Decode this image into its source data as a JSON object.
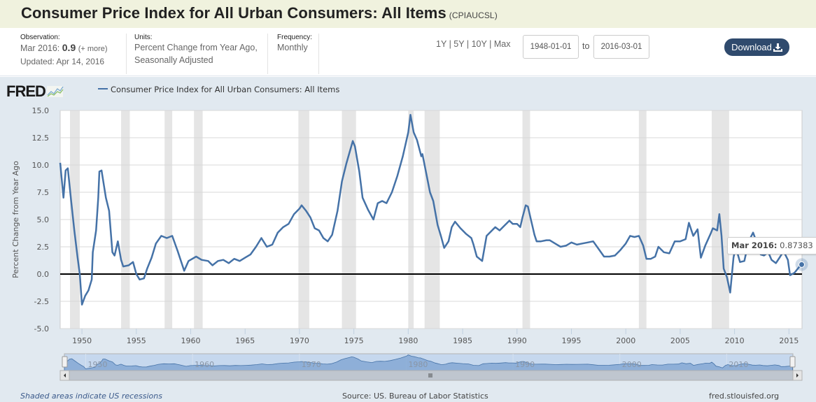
{
  "header": {
    "title": "Consumer Price Index for All Urban Consumers: All Items",
    "series_code": "(CPIAUCSL)"
  },
  "meta": {
    "observation_label": "Observation:",
    "observation_date": "Mar 2016:",
    "observation_value": "0.9",
    "observation_more": "(+ more)",
    "updated": "Updated: Apr 14, 2016",
    "units_label": "Units:",
    "units_line1": "Percent Change from Year Ago,",
    "units_line2": "Seasonally Adjusted",
    "frequency_label": "Frequency:",
    "frequency_value": "Monthly"
  },
  "controls": {
    "ranges": [
      "1Y",
      "5Y",
      "10Y",
      "Max"
    ],
    "range_sep": "|",
    "start_date": "1948-01-01",
    "to_label": "to",
    "end_date": "2016-03-01",
    "download_label": "Download"
  },
  "logo_text": "FRED",
  "tooltip": {
    "date": "Mar 2016",
    "value": "0.87383"
  },
  "navigator_labels": [
    "1950",
    "1960",
    "1970",
    "1980",
    "1990",
    "2000",
    "2010"
  ],
  "footer": {
    "recessions_note": "Shaded areas indicate US recessions",
    "source": "Source: US. Bureau of Labor Statistics",
    "site": "fred.stlouisfed.org"
  },
  "colors": {
    "series": "#4572a7",
    "recession": "#e5e5e5",
    "zero_line": "#000000",
    "download_bg": "#2f4a6d"
  },
  "chart_data": {
    "type": "line",
    "title": "Consumer Price Index for All Urban Consumers: All Items",
    "xlabel": "",
    "ylabel": "Percent Change from Year Ago",
    "xlim": [
      1948,
      2016.2
    ],
    "ylim": [
      -5,
      15
    ],
    "yticks": [
      -5.0,
      -2.5,
      0.0,
      2.5,
      5.0,
      7.5,
      10.0,
      12.5,
      15.0
    ],
    "ytick_labels": [
      "-5.0",
      "-2.5",
      "0.0",
      "2.5",
      "5.0",
      "7.5",
      "10.0",
      "12.5",
      "15.0"
    ],
    "xticks": [
      1950,
      1955,
      1960,
      1965,
      1970,
      1975,
      1980,
      1985,
      1990,
      1995,
      2000,
      2005,
      2010,
      2015
    ],
    "xtick_labels": [
      "1950",
      "1955",
      "1960",
      "1965",
      "1970",
      "1975",
      "1980",
      "1985",
      "1990",
      "1995",
      "2000",
      "2005",
      "2010",
      "2015"
    ],
    "grid": true,
    "legend": "top-left",
    "recessions": [
      [
        1948.9,
        1949.8
      ],
      [
        1953.6,
        1954.4
      ],
      [
        1957.6,
        1958.3
      ],
      [
        1960.3,
        1961.1
      ],
      [
        1969.9,
        1970.9
      ],
      [
        1973.9,
        1975.2
      ],
      [
        1980.0,
        1980.5
      ],
      [
        1981.5,
        1982.9
      ],
      [
        1990.5,
        1991.2
      ],
      [
        2001.2,
        2001.9
      ],
      [
        2007.9,
        2009.5
      ]
    ],
    "series": [
      {
        "name": "Consumer Price Index for All Urban Consumers: All Items",
        "x": [
          1948.0,
          1948.3,
          1948.5,
          1948.7,
          1949.0,
          1949.3,
          1949.6,
          1949.8,
          1950.0,
          1950.3,
          1950.6,
          1950.9,
          1951.0,
          1951.3,
          1951.5,
          1951.6,
          1951.8,
          1952.2,
          1952.5,
          1952.8,
          1953.0,
          1953.3,
          1953.6,
          1953.8,
          1954.3,
          1954.7,
          1955.0,
          1955.3,
          1955.7,
          1956.0,
          1956.4,
          1956.8,
          1957.3,
          1957.8,
          1958.3,
          1958.8,
          1959.4,
          1959.8,
          1960.5,
          1961.0,
          1961.6,
          1962.0,
          1962.5,
          1963.0,
          1963.5,
          1964.0,
          1964.5,
          1965.0,
          1965.5,
          1966.0,
          1966.5,
          1967.0,
          1967.5,
          1968.0,
          1968.5,
          1969.0,
          1969.5,
          1970.0,
          1970.2,
          1970.6,
          1971.0,
          1971.4,
          1971.8,
          1972.2,
          1972.6,
          1973.0,
          1973.5,
          1973.9,
          1974.3,
          1974.7,
          1974.9,
          1975.1,
          1975.5,
          1975.8,
          1976.3,
          1976.8,
          1977.2,
          1977.6,
          1978.0,
          1978.5,
          1979.0,
          1979.5,
          1980.0,
          1980.2,
          1980.5,
          1980.8,
          1981.2,
          1981.3,
          1981.7,
          1982.0,
          1982.3,
          1982.7,
          1983.0,
          1983.3,
          1983.7,
          1984.0,
          1984.3,
          1984.8,
          1985.3,
          1985.8,
          1986.0,
          1986.3,
          1986.8,
          1987.2,
          1987.5,
          1988.0,
          1988.4,
          1988.8,
          1989.3,
          1989.6,
          1990.0,
          1990.3,
          1990.5,
          1990.8,
          1991.0,
          1991.3,
          1991.6,
          1991.8,
          1992.2,
          1992.7,
          1993.0,
          1993.5,
          1994.0,
          1994.5,
          1995.0,
          1995.5,
          1996.0,
          1996.5,
          1997.0,
          1997.5,
          1998.0,
          1998.5,
          1999.0,
          1999.5,
          2000.0,
          2000.4,
          2000.8,
          2001.2,
          2001.6,
          2001.9,
          2002.3,
          2002.7,
          2003.0,
          2003.5,
          2004.0,
          2004.5,
          2005.0,
          2005.5,
          2005.8,
          2006.2,
          2006.6,
          2006.9,
          2007.3,
          2007.8,
          2008.0,
          2008.4,
          2008.6,
          2008.8,
          2009.0,
          2009.3,
          2009.6,
          2009.9,
          2010.1,
          2010.5,
          2010.9,
          2011.3,
          2011.7,
          2012.0,
          2012.4,
          2012.7,
          2013.1,
          2013.4,
          2013.8,
          2014.2,
          2014.5,
          2014.9,
          2015.1,
          2015.5,
          2015.9,
          2016.17
        ],
        "values": [
          10.2,
          7.0,
          9.5,
          9.7,
          6.8,
          4.0,
          1.5,
          0.0,
          -2.8,
          -2.0,
          -1.5,
          -0.5,
          2.0,
          4.0,
          7.0,
          9.4,
          9.5,
          7.0,
          5.8,
          2.0,
          1.7,
          3.0,
          1.3,
          0.7,
          0.8,
          1.1,
          0.0,
          -0.5,
          -0.4,
          0.5,
          1.5,
          2.8,
          3.5,
          3.3,
          3.5,
          2.1,
          0.3,
          1.2,
          1.6,
          1.3,
          1.2,
          0.8,
          1.2,
          1.3,
          1.0,
          1.4,
          1.2,
          1.5,
          1.8,
          2.5,
          3.3,
          2.5,
          2.7,
          3.8,
          4.3,
          4.6,
          5.5,
          6.0,
          6.3,
          5.8,
          5.2,
          4.2,
          4.0,
          3.3,
          3.0,
          3.6,
          5.8,
          8.5,
          10.1,
          11.5,
          12.2,
          11.7,
          9.4,
          7.0,
          5.9,
          5.0,
          6.5,
          6.7,
          6.5,
          7.5,
          9.0,
          10.8,
          13.0,
          14.6,
          13.0,
          12.3,
          10.8,
          11.0,
          9.0,
          7.5,
          6.7,
          4.5,
          3.5,
          2.4,
          3.0,
          4.3,
          4.8,
          4.2,
          3.7,
          3.3,
          2.7,
          1.6,
          1.2,
          3.5,
          3.8,
          4.3,
          4.0,
          4.4,
          4.9,
          4.6,
          4.6,
          4.3,
          5.2,
          6.3,
          6.2,
          4.9,
          3.6,
          3.0,
          3.0,
          3.1,
          3.1,
          2.8,
          2.5,
          2.6,
          2.9,
          2.7,
          2.8,
          2.9,
          3.0,
          2.3,
          1.6,
          1.6,
          1.7,
          2.2,
          2.8,
          3.5,
          3.4,
          3.5,
          2.6,
          1.4,
          1.4,
          1.6,
          2.5,
          2.0,
          1.9,
          3.0,
          3.0,
          3.2,
          4.7,
          3.5,
          4.1,
          1.5,
          2.6,
          3.7,
          4.2,
          4.0,
          5.5,
          3.5,
          0.5,
          -0.3,
          -1.7,
          1.5,
          2.5,
          1.1,
          1.2,
          3.0,
          3.8,
          3.0,
          1.8,
          1.7,
          2.0,
          1.3,
          1.0,
          1.6,
          2.1,
          1.3,
          -0.1,
          0.1,
          0.6,
          0.87
        ]
      }
    ]
  }
}
